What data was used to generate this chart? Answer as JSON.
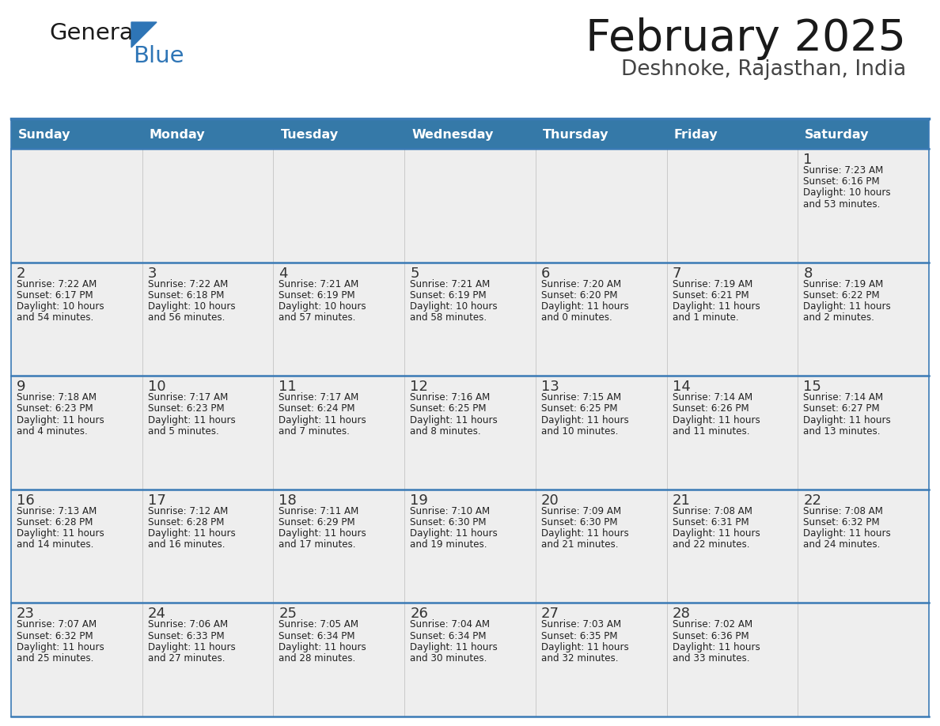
{
  "title": "February 2025",
  "subtitle": "Deshnoke, Rajasthan, India",
  "header_bg": "#3579a8",
  "header_text_color": "#ffffff",
  "cell_bg": "#eeeeee",
  "day_names": [
    "Sunday",
    "Monday",
    "Tuesday",
    "Wednesday",
    "Thursday",
    "Friday",
    "Saturday"
  ],
  "weeks": [
    [
      null,
      null,
      null,
      null,
      null,
      null,
      1
    ],
    [
      2,
      3,
      4,
      5,
      6,
      7,
      8
    ],
    [
      9,
      10,
      11,
      12,
      13,
      14,
      15
    ],
    [
      16,
      17,
      18,
      19,
      20,
      21,
      22
    ],
    [
      23,
      24,
      25,
      26,
      27,
      28,
      null
    ]
  ],
  "cell_data": {
    "1": {
      "sunrise": "7:23 AM",
      "sunset": "6:16 PM",
      "daylight_hours": 10,
      "daylight_min": 53,
      "daylight_min_word": "minutes"
    },
    "2": {
      "sunrise": "7:22 AM",
      "sunset": "6:17 PM",
      "daylight_hours": 10,
      "daylight_min": 54,
      "daylight_min_word": "minutes"
    },
    "3": {
      "sunrise": "7:22 AM",
      "sunset": "6:18 PM",
      "daylight_hours": 10,
      "daylight_min": 56,
      "daylight_min_word": "minutes"
    },
    "4": {
      "sunrise": "7:21 AM",
      "sunset": "6:19 PM",
      "daylight_hours": 10,
      "daylight_min": 57,
      "daylight_min_word": "minutes"
    },
    "5": {
      "sunrise": "7:21 AM",
      "sunset": "6:19 PM",
      "daylight_hours": 10,
      "daylight_min": 58,
      "daylight_min_word": "minutes"
    },
    "6": {
      "sunrise": "7:20 AM",
      "sunset": "6:20 PM",
      "daylight_hours": 11,
      "daylight_min": 0,
      "daylight_min_word": "minutes"
    },
    "7": {
      "sunrise": "7:19 AM",
      "sunset": "6:21 PM",
      "daylight_hours": 11,
      "daylight_min": 1,
      "daylight_min_word": "minute"
    },
    "8": {
      "sunrise": "7:19 AM",
      "sunset": "6:22 PM",
      "daylight_hours": 11,
      "daylight_min": 2,
      "daylight_min_word": "minutes"
    },
    "9": {
      "sunrise": "7:18 AM",
      "sunset": "6:23 PM",
      "daylight_hours": 11,
      "daylight_min": 4,
      "daylight_min_word": "minutes"
    },
    "10": {
      "sunrise": "7:17 AM",
      "sunset": "6:23 PM",
      "daylight_hours": 11,
      "daylight_min": 5,
      "daylight_min_word": "minutes"
    },
    "11": {
      "sunrise": "7:17 AM",
      "sunset": "6:24 PM",
      "daylight_hours": 11,
      "daylight_min": 7,
      "daylight_min_word": "minutes"
    },
    "12": {
      "sunrise": "7:16 AM",
      "sunset": "6:25 PM",
      "daylight_hours": 11,
      "daylight_min": 8,
      "daylight_min_word": "minutes"
    },
    "13": {
      "sunrise": "7:15 AM",
      "sunset": "6:25 PM",
      "daylight_hours": 11,
      "daylight_min": 10,
      "daylight_min_word": "minutes"
    },
    "14": {
      "sunrise": "7:14 AM",
      "sunset": "6:26 PM",
      "daylight_hours": 11,
      "daylight_min": 11,
      "daylight_min_word": "minutes"
    },
    "15": {
      "sunrise": "7:14 AM",
      "sunset": "6:27 PM",
      "daylight_hours": 11,
      "daylight_min": 13,
      "daylight_min_word": "minutes"
    },
    "16": {
      "sunrise": "7:13 AM",
      "sunset": "6:28 PM",
      "daylight_hours": 11,
      "daylight_min": 14,
      "daylight_min_word": "minutes"
    },
    "17": {
      "sunrise": "7:12 AM",
      "sunset": "6:28 PM",
      "daylight_hours": 11,
      "daylight_min": 16,
      "daylight_min_word": "minutes"
    },
    "18": {
      "sunrise": "7:11 AM",
      "sunset": "6:29 PM",
      "daylight_hours": 11,
      "daylight_min": 17,
      "daylight_min_word": "minutes"
    },
    "19": {
      "sunrise": "7:10 AM",
      "sunset": "6:30 PM",
      "daylight_hours": 11,
      "daylight_min": 19,
      "daylight_min_word": "minutes"
    },
    "20": {
      "sunrise": "7:09 AM",
      "sunset": "6:30 PM",
      "daylight_hours": 11,
      "daylight_min": 21,
      "daylight_min_word": "minutes"
    },
    "21": {
      "sunrise": "7:08 AM",
      "sunset": "6:31 PM",
      "daylight_hours": 11,
      "daylight_min": 22,
      "daylight_min_word": "minutes"
    },
    "22": {
      "sunrise": "7:08 AM",
      "sunset": "6:32 PM",
      "daylight_hours": 11,
      "daylight_min": 24,
      "daylight_min_word": "minutes"
    },
    "23": {
      "sunrise": "7:07 AM",
      "sunset": "6:32 PM",
      "daylight_hours": 11,
      "daylight_min": 25,
      "daylight_min_word": "minutes"
    },
    "24": {
      "sunrise": "7:06 AM",
      "sunset": "6:33 PM",
      "daylight_hours": 11,
      "daylight_min": 27,
      "daylight_min_word": "minutes"
    },
    "25": {
      "sunrise": "7:05 AM",
      "sunset": "6:34 PM",
      "daylight_hours": 11,
      "daylight_min": 28,
      "daylight_min_word": "minutes"
    },
    "26": {
      "sunrise": "7:04 AM",
      "sunset": "6:34 PM",
      "daylight_hours": 11,
      "daylight_min": 30,
      "daylight_min_word": "minutes"
    },
    "27": {
      "sunrise": "7:03 AM",
      "sunset": "6:35 PM",
      "daylight_hours": 11,
      "daylight_min": 32,
      "daylight_min_word": "minutes"
    },
    "28": {
      "sunrise": "7:02 AM",
      "sunset": "6:36 PM",
      "daylight_hours": 11,
      "daylight_min": 33,
      "daylight_min_word": "minutes"
    }
  },
  "header_bg_color": "#3579a8",
  "divider_color": "#3a7ab5",
  "text_color": "#222222",
  "number_color": "#333333",
  "bg_color": "#ffffff"
}
